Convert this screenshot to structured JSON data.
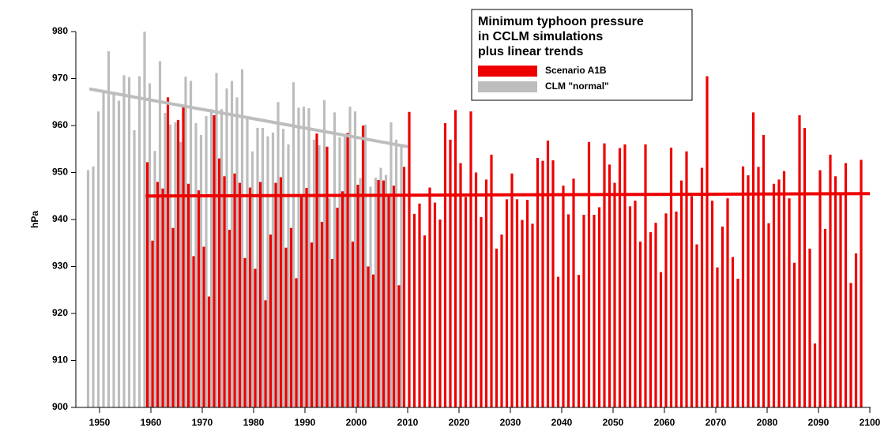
{
  "chart_data": {
    "type": "bar",
    "title": [
      "Minimum typhoon pressure",
      "in CCLM simulations",
      "plus linear trends"
    ],
    "y_label": "hPa",
    "ylim": [
      900,
      980
    ],
    "yticks": [
      900,
      910,
      920,
      930,
      940,
      950,
      960,
      970,
      980
    ],
    "xlim": [
      1950,
      2100
    ],
    "xticks": [
      1950,
      1960,
      1970,
      1980,
      1990,
      2000,
      2010,
      2020,
      2030,
      2040,
      2050,
      2060,
      2070,
      2080,
      2090,
      2100
    ],
    "series": [
      {
        "name": "CLM \"normal\"",
        "color": "#bdbdbd",
        "x0": 1948,
        "values": [
          950.5,
          951.3,
          963,
          967,
          975.8,
          967.2,
          965.3,
          970.7,
          970.3,
          959,
          970.5,
          980,
          969,
          954.6,
          973.7,
          962.7,
          960.2,
          960.7,
          956.5,
          970.4,
          969.5,
          960.5,
          958,
          962,
          963.5,
          971.2,
          963.5,
          967.9,
          969.5,
          966,
          972,
          962,
          954.5,
          959.5,
          959.5,
          957.7,
          958.5,
          965,
          959.3,
          956,
          969.2,
          963.8,
          964,
          963.7,
          957,
          955.8,
          965.4,
          944.5,
          962.8,
          957.5,
          958,
          964,
          963,
          948.8,
          960.2,
          947,
          948.9,
          951,
          949.5,
          960.7,
          957,
          955.8
        ],
        "trend": {
          "x": [
            1948,
            2010
          ],
          "values": [
            967.8,
            955.5
          ]
        }
      },
      {
        "name": "Scenario A1B",
        "color": "#ee0000",
        "x0": 1959,
        "values": [
          952.2,
          935.5,
          948,
          946.6,
          966,
          938.2,
          961.2,
          964.3,
          947.6,
          932.2,
          946.2,
          934.2,
          923.6,
          962.2,
          953,
          949.2,
          937.8,
          949.8,
          947.8,
          931.8,
          946.8,
          929.5,
          948,
          922.8,
          936.8,
          947.8,
          949,
          934,
          938.2,
          927.5,
          945.2,
          946.7,
          935.1,
          958.3,
          939.5,
          955.5,
          931.6,
          942.5,
          946,
          958.4,
          935.3,
          947.4,
          960,
          930,
          928.3,
          948.4,
          948.3,
          945.5,
          947.2,
          926,
          951.2,
          962.9,
          941.2,
          943.4,
          936.6,
          946.8,
          943.6,
          940,
          960.5,
          957,
          963.3,
          952,
          944.8,
          963,
          950,
          940.5,
          948.5,
          953.8,
          933.8,
          936.8,
          944.3,
          949.8,
          944.3,
          939.9,
          944.2,
          939.1,
          953.1,
          952.5,
          956.8,
          952.6,
          927.8,
          947.2,
          941.1,
          948.7,
          928.2,
          941,
          956.5,
          941,
          942.6,
          956.2,
          951.7,
          947.8,
          955.2,
          956,
          942.8,
          944,
          935.3,
          956,
          937.3,
          939.3,
          928.8,
          941.3,
          955.3,
          941.7,
          948.3,
          954.5,
          945,
          934.7,
          951,
          970.5,
          944,
          929.8,
          938.5,
          944.5,
          932,
          927.4,
          951.3,
          949.4,
          962.8,
          951.2,
          958,
          939.2,
          947.6,
          948.5,
          950.3,
          944.5,
          930.8,
          962.2,
          959.5,
          933.8,
          913.6,
          950.5,
          938,
          953.8,
          949.2,
          945.5,
          952,
          926.5,
          932.8,
          952.7
        ],
        "trend": {
          "x": [
            1959,
            2100
          ],
          "values": [
            945,
            945.5
          ]
        }
      }
    ]
  }
}
